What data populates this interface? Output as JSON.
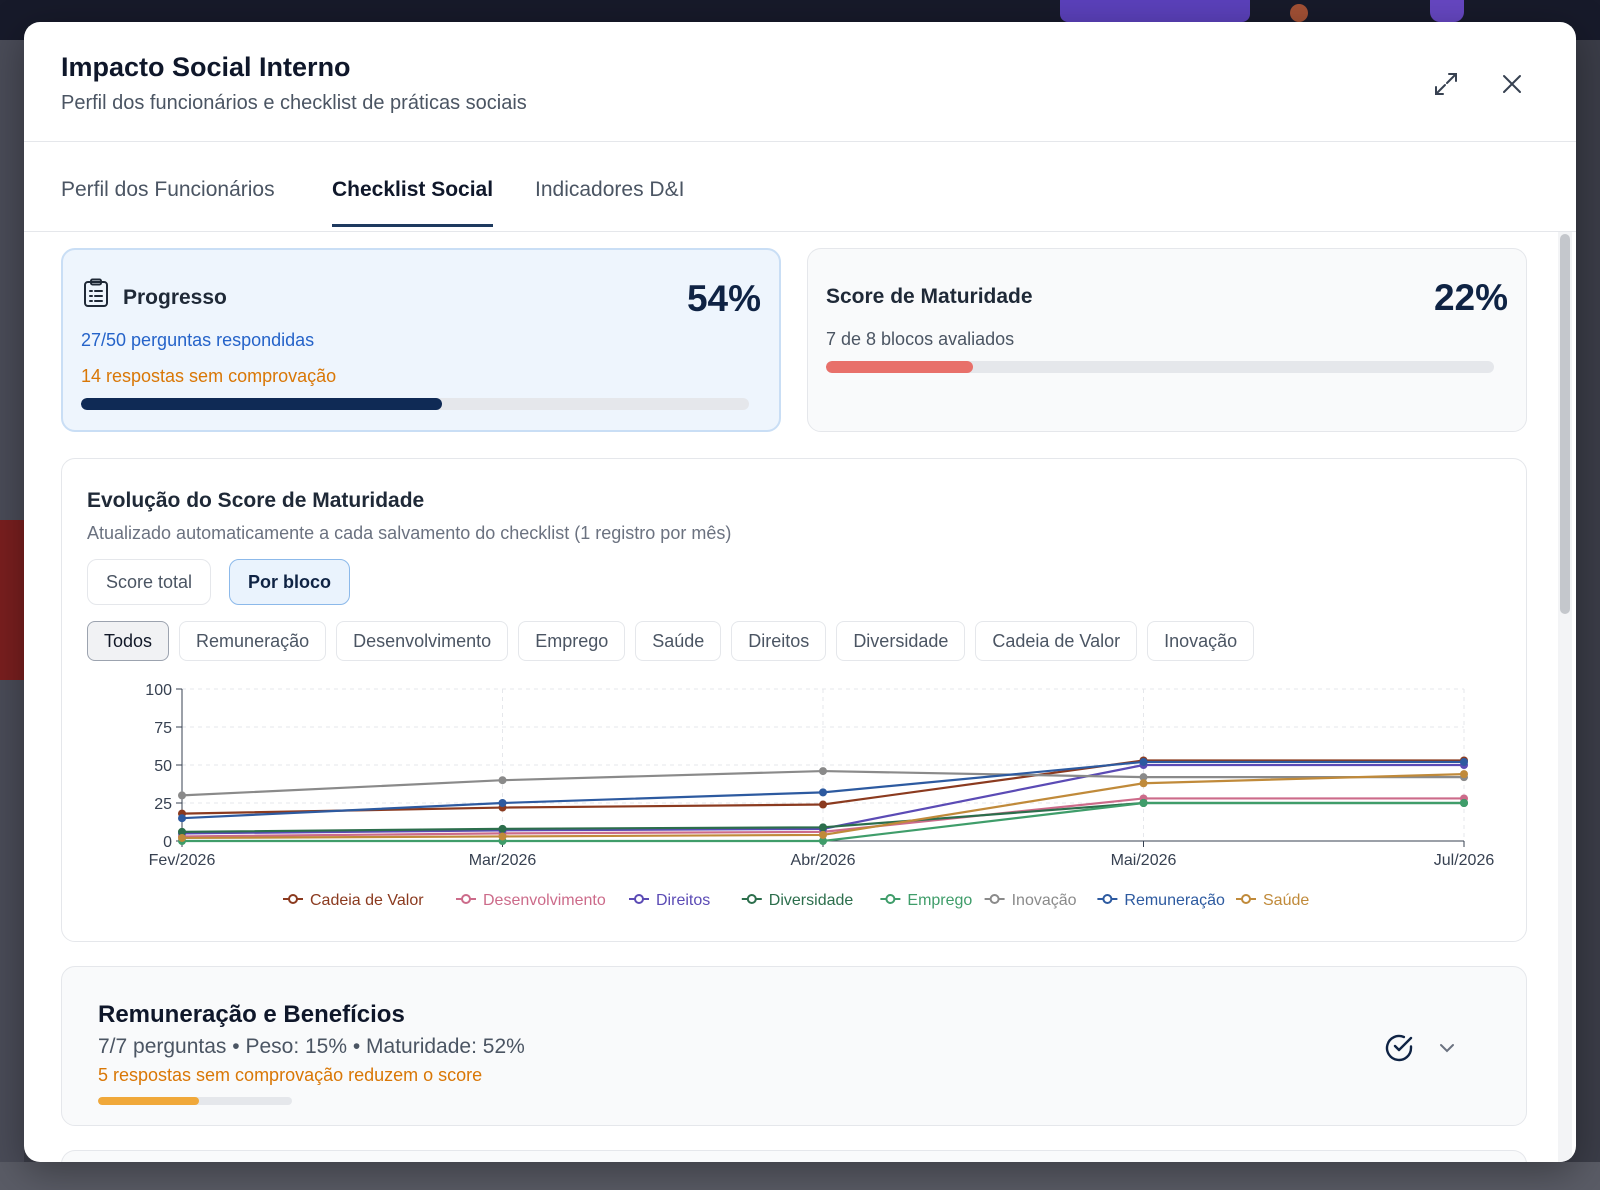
{
  "modal": {
    "title": "Impacto Social Interno",
    "subtitle": "Perfil dos funcionários e checklist de práticas sociais",
    "expand_icon": "expand-icon",
    "close_icon": "close-icon"
  },
  "tabs": [
    {
      "label": "Perfil dos Funcionários",
      "active": false
    },
    {
      "label": "Checklist Social",
      "active": true
    },
    {
      "label": "Indicadores D&I",
      "active": false
    }
  ],
  "progress": {
    "icon": "clipboard-icon",
    "title": "Progresso",
    "percent": "54%",
    "answered": "27/50 perguntas respondidas",
    "unproven": "14 respostas sem comprovação",
    "bar_value": 0.54,
    "bar_color": "#0f2a55"
  },
  "maturity": {
    "title": "Score de Maturidade",
    "percent": "22%",
    "blocks": "7 de 8 blocos avaliados",
    "bar_value": 0.22,
    "bar_color": "#e8706a"
  },
  "evolution": {
    "title": "Evolução do Score de Maturidade",
    "subtitle": "Atualizado automaticamente a cada salvamento do checklist (1 registro por mês)",
    "toggles": [
      {
        "label": "Score total",
        "active": false
      },
      {
        "label": "Por bloco",
        "active": true
      }
    ],
    "filters": [
      {
        "label": "Todos",
        "active": true
      },
      {
        "label": "Remuneração",
        "active": false
      },
      {
        "label": "Desenvolvimento",
        "active": false
      },
      {
        "label": "Emprego",
        "active": false
      },
      {
        "label": "Saúde",
        "active": false
      },
      {
        "label": "Direitos",
        "active": false
      },
      {
        "label": "Diversidade",
        "active": false
      },
      {
        "label": "Cadeia de Valor",
        "active": false
      },
      {
        "label": "Inovação",
        "active": false
      }
    ]
  },
  "chart_data": {
    "type": "line",
    "x": [
      "Fev/2026",
      "Mar/2026",
      "Abr/2026",
      "Mai/2026",
      "Jul/2026"
    ],
    "ylim": [
      0,
      100
    ],
    "yticks": [
      0,
      25,
      50,
      75,
      100
    ],
    "grid": true,
    "legend_position": "bottom",
    "series": [
      {
        "name": "Cadeia de Valor",
        "color": "#8b3a1f",
        "values": [
          18,
          22,
          24,
          53,
          53
        ]
      },
      {
        "name": "Desenvolvimento",
        "color": "#cc6b8a",
        "values": [
          3,
          5,
          6,
          28,
          28
        ]
      },
      {
        "name": "Direitos",
        "color": "#5b4bb5",
        "values": [
          5,
          7,
          8,
          50,
          50
        ]
      },
      {
        "name": "Diversidade",
        "color": "#2c6e4c",
        "values": [
          6,
          8,
          9,
          25,
          25
        ]
      },
      {
        "name": "Emprego",
        "color": "#3f9d6a",
        "values": [
          0,
          0,
          0,
          25,
          25
        ]
      },
      {
        "name": "Inovação",
        "color": "#8a8a8a",
        "values": [
          30,
          40,
          46,
          42,
          42
        ]
      },
      {
        "name": "Remuneração",
        "color": "#2d5aa0",
        "values": [
          15,
          25,
          32,
          52,
          52
        ]
      },
      {
        "name": "Saúde",
        "color": "#c08a3a",
        "values": [
          2,
          3,
          4,
          38,
          44
        ]
      }
    ]
  },
  "block": {
    "title": "Remuneração e Benefícios",
    "meta": "7/7 perguntas • Peso: 15% • Maturidade: 52%",
    "warning": "5 respostas sem comprovação reduzem o score",
    "bar_value": 0.52,
    "bar_color": "#f0a83a",
    "check_icon": "check-circle-icon",
    "chevron_icon": "chevron-down-icon"
  }
}
